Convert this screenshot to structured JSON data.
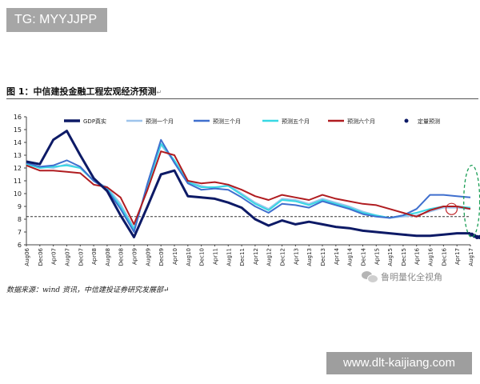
{
  "badge": {
    "text": "TG: MYYJJPP"
  },
  "figure": {
    "title": "图 1：中信建投金融工程宏观经济预测",
    "title_mark": "↵"
  },
  "source": {
    "text": "数据来源：wind 资讯，中信建投证券研究发展部↵"
  },
  "watermark": {
    "text": "鲁明量化全视角",
    "icon": "wechat-icon"
  },
  "url_badge": {
    "text": "www.dlt-kaijiang.com"
  },
  "chart_data": {
    "type": "line",
    "title": "",
    "xlabel": "",
    "ylabel": "",
    "ylim": [
      6,
      16
    ],
    "yticks": [
      6,
      7,
      8,
      9,
      10,
      11,
      12,
      13,
      14,
      15,
      16
    ],
    "grid": false,
    "legend_position": "top",
    "reference_line": {
      "y": 8.2,
      "style": "dashed",
      "color": "#333333"
    },
    "x_labels": [
      "Aug06",
      "Dec06",
      "Apr07",
      "Aug07",
      "Dec07",
      "Apr08",
      "Aug08",
      "Dec08",
      "Apr09",
      "Aug09",
      "Dec09",
      "Apr10",
      "Aug10",
      "Dec10",
      "Apr11",
      "Aug11",
      "Dec11",
      "Apr12",
      "Aug12",
      "Dec12",
      "Apr13",
      "Aug13",
      "Dec13",
      "Apr14",
      "Aug14",
      "Dec14",
      "Apr15",
      "Aug15",
      "Dec15",
      "Apr16",
      "Aug16",
      "Dec16",
      "Apr17",
      "Aug17"
    ],
    "series": [
      {
        "name": "GDP真实",
        "color": "#0d1a66",
        "width": 3,
        "values": [
          12.5,
          12.3,
          14.2,
          14.9,
          13.0,
          11.2,
          10.2,
          8.3,
          6.6,
          9.0,
          11.5,
          11.8,
          9.8,
          9.7,
          9.6,
          9.3,
          8.9,
          8.0,
          7.5,
          7.9,
          7.6,
          7.8,
          7.6,
          7.4,
          7.3,
          7.1,
          7.0,
          6.9,
          6.8,
          6.7,
          6.7,
          6.8,
          6.9,
          6.9
        ]
      },
      {
        "name": "预测一个月",
        "color": "#9ec4ec",
        "width": 2,
        "values": [
          12.3,
          12.1,
          12.0,
          12.3,
          12.0,
          11.0,
          10.5,
          9.2,
          7.3,
          10.5,
          13.8,
          12.5,
          11.0,
          10.6,
          10.4,
          10.7,
          10.0,
          9.3,
          8.8,
          9.6,
          9.5,
          9.2,
          9.6,
          9.3,
          9.0,
          8.6,
          8.3,
          8.1,
          8.2,
          8.3,
          8.6,
          8.9,
          8.9,
          8.8
        ]
      },
      {
        "name": "预测三个月",
        "color": "#3f6fce",
        "width": 2,
        "values": [
          12.4,
          12.1,
          12.2,
          12.6,
          12.1,
          11.0,
          10.3,
          8.8,
          7.0,
          10.8,
          14.2,
          12.4,
          10.8,
          10.3,
          10.4,
          10.3,
          9.7,
          9.0,
          8.5,
          9.2,
          9.1,
          8.9,
          9.4,
          9.1,
          8.8,
          8.4,
          8.2,
          8.1,
          8.3,
          8.8,
          9.9,
          9.9,
          9.8,
          9.7
        ]
      },
      {
        "name": "预测五个月",
        "color": "#37d8e4",
        "width": 2,
        "values": [
          12.3,
          12.0,
          12.1,
          12.2,
          12.0,
          11.0,
          10.4,
          9.0,
          7.2,
          10.6,
          13.9,
          12.6,
          10.9,
          10.5,
          10.5,
          10.6,
          9.9,
          9.2,
          8.7,
          9.5,
          9.4,
          9.1,
          9.5,
          9.2,
          8.9,
          8.5,
          8.3,
          8.1,
          8.3,
          8.5,
          8.8,
          9.0,
          9.0,
          8.9
        ]
      },
      {
        "name": "预测六个月",
        "color": "#b01c20",
        "width": 2,
        "values": [
          12.2,
          11.8,
          11.8,
          11.7,
          11.6,
          10.7,
          10.5,
          9.7,
          7.6,
          10.3,
          13.3,
          13.0,
          11.0,
          10.8,
          10.9,
          10.7,
          10.3,
          9.8,
          9.5,
          9.9,
          9.7,
          9.5,
          9.9,
          9.6,
          9.4,
          9.2,
          9.1,
          8.8,
          8.5,
          8.2,
          8.7,
          9.0,
          9.0,
          8.8
        ]
      },
      {
        "name": "定量预测",
        "color": "#0d1a66",
        "type": "scatter",
        "x_index": [
          33.1,
          33.3,
          33.5,
          33.7
        ],
        "values": [
          6.8,
          6.7,
          6.6,
          6.6
        ]
      }
    ]
  }
}
